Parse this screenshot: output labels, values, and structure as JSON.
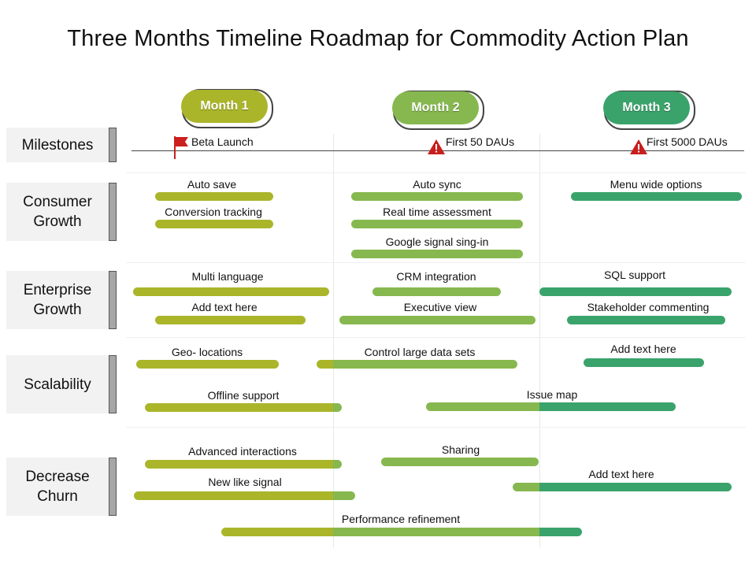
{
  "title": "Three Months Timeline Roadmap for Commodity Action Plan",
  "colors": {
    "month1": "#aab52a",
    "month2": "#86b84f",
    "month3": "#3aa36b",
    "flag": "#cc1f1f",
    "warning": "#c81e1e"
  },
  "months": [
    "Month 1",
    "Month 2",
    "Month 3"
  ],
  "rows": [
    "Milestones",
    "Consumer\nGrowth",
    "Enterprise\nGrowth",
    "Scalability",
    "Decrease\nChurn"
  ],
  "milestones": [
    "Beta Launch",
    "First  50 DAUs",
    "First  5000 DAUs"
  ],
  "tasks": {
    "auto_save": "Auto save",
    "conversion_tracking": "Conversion tracking",
    "auto_sync": "Auto sync",
    "real_time_assessment": "Real time assessment",
    "google_signal": "Google signal sing-in",
    "menu_wide": "Menu wide options",
    "multi_language": "Multi language",
    "add_text_1": "Add text here",
    "crm": "CRM integration",
    "executive_view": "Executive view",
    "sql_support": "SQL support",
    "stakeholder": "Stakeholder commenting",
    "geo": "Geo- locations",
    "control_large": "Control large data sets",
    "add_text_2": "Add text here",
    "offline": "Offline support",
    "issue_map": "Issue map",
    "advanced": "Advanced interactions",
    "sharing": "Sharing",
    "new_like": "New like signal",
    "add_text_3": "Add text here",
    "performance": "Performance refinement"
  }
}
